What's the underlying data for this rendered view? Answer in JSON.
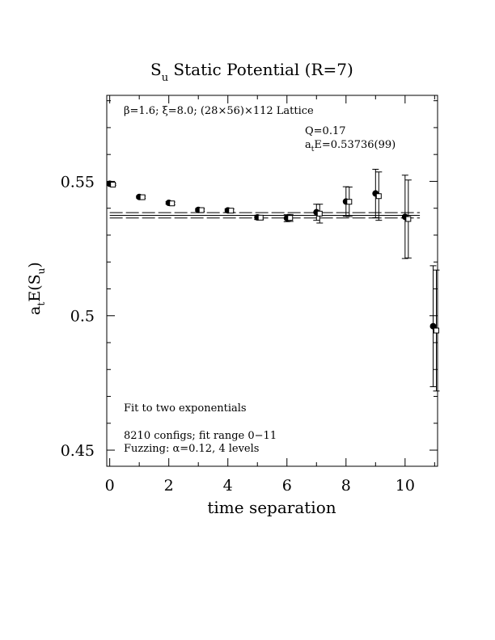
{
  "chart_data": {
    "type": "scatter",
    "title": {
      "main": "S",
      "sub": "u",
      "rest": " Static Potential (R=7)"
    },
    "xlabel": "time separation",
    "ylabel": {
      "a": "a",
      "a_sub": "t",
      "mid": "E(S",
      "s_sub": "u",
      "end": ")"
    },
    "xlim": [
      -0.1,
      11.1
    ],
    "ylim": [
      0.444,
      0.582
    ],
    "xticks": [
      0,
      2,
      4,
      6,
      8,
      10
    ],
    "xticklabels": [
      "0",
      "2",
      "4",
      "6",
      "8",
      "10"
    ],
    "yticks": [
      0.45,
      0.5,
      0.55
    ],
    "yticklabels": [
      "0.45",
      "0.5",
      "0.55"
    ],
    "lattice_label": "β=1.6; ξ=8.0; (28×56)×112 Lattice",
    "fit_q": "Q=0.17",
    "fit_energy": {
      "a": "a",
      "a_sub": "t",
      "rest": "E=0.53736(99)"
    },
    "annotations": [
      "Fit to two exponentials",
      "8210 configs; fit range 0−11",
      "Fuzzing: α=0.12, 4 levels"
    ],
    "fit": {
      "value": 0.53736,
      "error": 0.00099,
      "x_range": [
        0,
        10.5
      ]
    },
    "series": [
      {
        "marker": "filled-circle",
        "points": [
          {
            "x": 0,
            "y": 0.5491,
            "err": 0.0003
          },
          {
            "x": 1,
            "y": 0.5442,
            "err": 0.0004
          },
          {
            "x": 2,
            "y": 0.542,
            "err": 0.0005
          },
          {
            "x": 3,
            "y": 0.5394,
            "err": 0.0005
          },
          {
            "x": 4,
            "y": 0.5392,
            "err": 0.0006
          },
          {
            "x": 5,
            "y": 0.5366,
            "err": 0.0008
          },
          {
            "x": 6,
            "y": 0.5363,
            "err": 0.0013
          },
          {
            "x": 7,
            "y": 0.5385,
            "err": 0.003
          },
          {
            "x": 8,
            "y": 0.5425,
            "err": 0.0055
          },
          {
            "x": 9,
            "y": 0.5455,
            "err": 0.009
          },
          {
            "x": 10,
            "y": 0.5368,
            "err": 0.0155
          },
          {
            "x": 10.95,
            "y": 0.4961,
            "err": 0.0225
          }
        ]
      },
      {
        "marker": "open-square",
        "points": [
          {
            "x": 0,
            "y": 0.5488,
            "err": 0.0003
          },
          {
            "x": 1,
            "y": 0.5441,
            "err": 0.0004
          },
          {
            "x": 2,
            "y": 0.5418,
            "err": 0.0005
          },
          {
            "x": 3,
            "y": 0.5393,
            "err": 0.0005
          },
          {
            "x": 4,
            "y": 0.5391,
            "err": 0.0006
          },
          {
            "x": 5,
            "y": 0.5365,
            "err": 0.0008
          },
          {
            "x": 6,
            "y": 0.5364,
            "err": 0.0013
          },
          {
            "x": 7,
            "y": 0.538,
            "err": 0.0035
          },
          {
            "x": 8,
            "y": 0.5424,
            "err": 0.0055
          },
          {
            "x": 9,
            "y": 0.5445,
            "err": 0.009
          },
          {
            "x": 10,
            "y": 0.536,
            "err": 0.0145
          },
          {
            "x": 10.95,
            "y": 0.4945,
            "err": 0.0225
          }
        ]
      }
    ]
  }
}
